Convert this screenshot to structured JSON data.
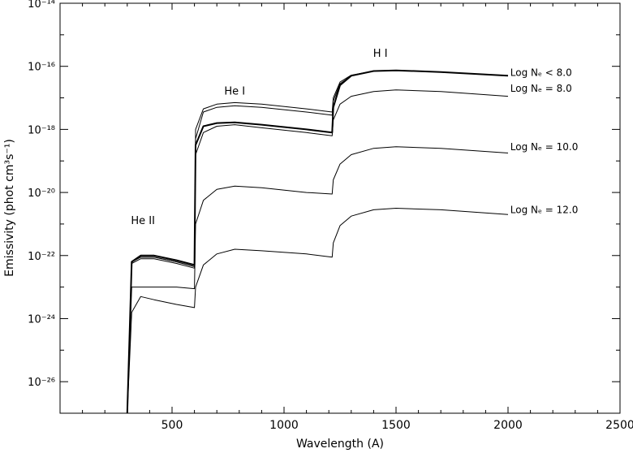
{
  "chart_data": {
    "type": "line",
    "xlabel": "Wavelength (A)",
    "ylabel": "Emissivity (phot cm³s⁻¹)",
    "xlim": [
      0,
      2500
    ],
    "ylim_log10": [
      -27,
      -14
    ],
    "yscale": "log",
    "x_ticks": [
      500,
      1000,
      1500,
      2000,
      2500
    ],
    "x_tick_labels": [
      "500",
      "1000",
      "1500",
      "2000",
      "2500"
    ],
    "y_ticks_log10": [
      -26,
      -24,
      -22,
      -20,
      -18,
      -16,
      -14
    ],
    "y_tick_labels": [
      "10⁻²⁶",
      "10⁻²⁴",
      "10⁻²²",
      "10⁻²⁰",
      "10⁻¹⁸",
      "10⁻¹⁶",
      "10⁻¹⁴"
    ],
    "annotations": [
      {
        "text": "He II",
        "x": 370,
        "y_log10": -21.0
      },
      {
        "text": "He I",
        "x": 780,
        "y_log10": -16.9
      },
      {
        "text": "H I",
        "x": 1430,
        "y_log10": -15.7
      }
    ],
    "series": [
      {
        "name": "Log Nₑ < 8.0",
        "x": [
          300,
          320,
          360,
          420,
          520,
          600,
          605,
          640,
          700,
          780,
          900,
          1100,
          1215,
          1220,
          1250,
          1300,
          1400,
          1500,
          1700,
          2000
        ],
        "log10_y": [
          -27.0,
          -22.2,
          -22.0,
          -22.0,
          -22.15,
          -22.3,
          -18.5,
          -17.9,
          -17.8,
          -17.78,
          -17.85,
          -18.0,
          -18.1,
          -17.3,
          -16.6,
          -16.3,
          -16.15,
          -16.13,
          -16.18,
          -16.3
        ]
      },
      {
        "name": "",
        "x": [
          300,
          320,
          360,
          420,
          520,
          600,
          605,
          640,
          700,
          780,
          900,
          1100,
          1215,
          1220,
          1250,
          1300,
          1400,
          1500,
          1700,
          2000
        ],
        "log10_y": [
          -27.0,
          -22.2,
          -22.05,
          -22.05,
          -22.2,
          -22.35,
          -18.3,
          -17.45,
          -17.3,
          -17.25,
          -17.3,
          -17.45,
          -17.55,
          -17.1,
          -16.55,
          -16.3,
          -16.15,
          -16.13,
          -16.18,
          -16.3
        ]
      },
      {
        "name": "",
        "x": [
          300,
          320,
          360,
          420,
          520,
          600,
          605,
          640,
          700,
          780,
          900,
          1100,
          1215,
          1220,
          1250,
          1300,
          1400,
          1500,
          1700,
          2000
        ],
        "log10_y": [
          -27.0,
          -22.2,
          -22.05,
          -22.05,
          -22.2,
          -22.35,
          -18.0,
          -17.35,
          -17.2,
          -17.15,
          -17.2,
          -17.35,
          -17.45,
          -17.0,
          -16.5,
          -16.28,
          -16.15,
          -16.13,
          -16.18,
          -16.3
        ]
      },
      {
        "name": "Log Nₑ = 8.0",
        "x": [
          300,
          320,
          360,
          420,
          520,
          600,
          605,
          640,
          700,
          780,
          900,
          1100,
          1215,
          1220,
          1250,
          1300,
          1400,
          1500,
          1700,
          2000
        ],
        "log10_y": [
          -27.0,
          -22.25,
          -22.1,
          -22.1,
          -22.25,
          -22.4,
          -18.8,
          -18.1,
          -17.9,
          -17.85,
          -17.95,
          -18.1,
          -18.2,
          -17.7,
          -17.2,
          -16.95,
          -16.8,
          -16.75,
          -16.8,
          -16.95
        ]
      },
      {
        "name": "Log Nₑ = 10.0",
        "x": [
          300,
          320,
          360,
          420,
          520,
          600,
          605,
          640,
          700,
          780,
          900,
          1100,
          1215,
          1220,
          1250,
          1300,
          1400,
          1500,
          1700,
          2000
        ],
        "log10_y": [
          -27.0,
          -23.0,
          -23.0,
          -23.0,
          -23.0,
          -23.05,
          -21.0,
          -20.25,
          -19.9,
          -19.8,
          -19.85,
          -20.0,
          -20.05,
          -19.6,
          -19.1,
          -18.8,
          -18.6,
          -18.55,
          -18.6,
          -18.75
        ]
      },
      {
        "name": "Log Nₑ = 12.0",
        "x": [
          300,
          320,
          360,
          420,
          520,
          600,
          605,
          640,
          700,
          780,
          900,
          1100,
          1215,
          1220,
          1250,
          1300,
          1400,
          1500,
          1700,
          2000
        ],
        "log10_y": [
          -27.0,
          -23.8,
          -23.3,
          -23.4,
          -23.55,
          -23.65,
          -23.0,
          -22.3,
          -21.95,
          -21.8,
          -21.85,
          -21.95,
          -22.05,
          -21.6,
          -21.05,
          -20.75,
          -20.55,
          -20.5,
          -20.55,
          -20.7
        ]
      }
    ],
    "legend_labels": [
      "Log Nₑ < 8.0",
      "Log Nₑ = 8.0",
      "Log Nₑ = 10.0",
      "Log Nₑ = 12.0"
    ],
    "grid": false,
    "legend_placement": "right, beside curves"
  }
}
